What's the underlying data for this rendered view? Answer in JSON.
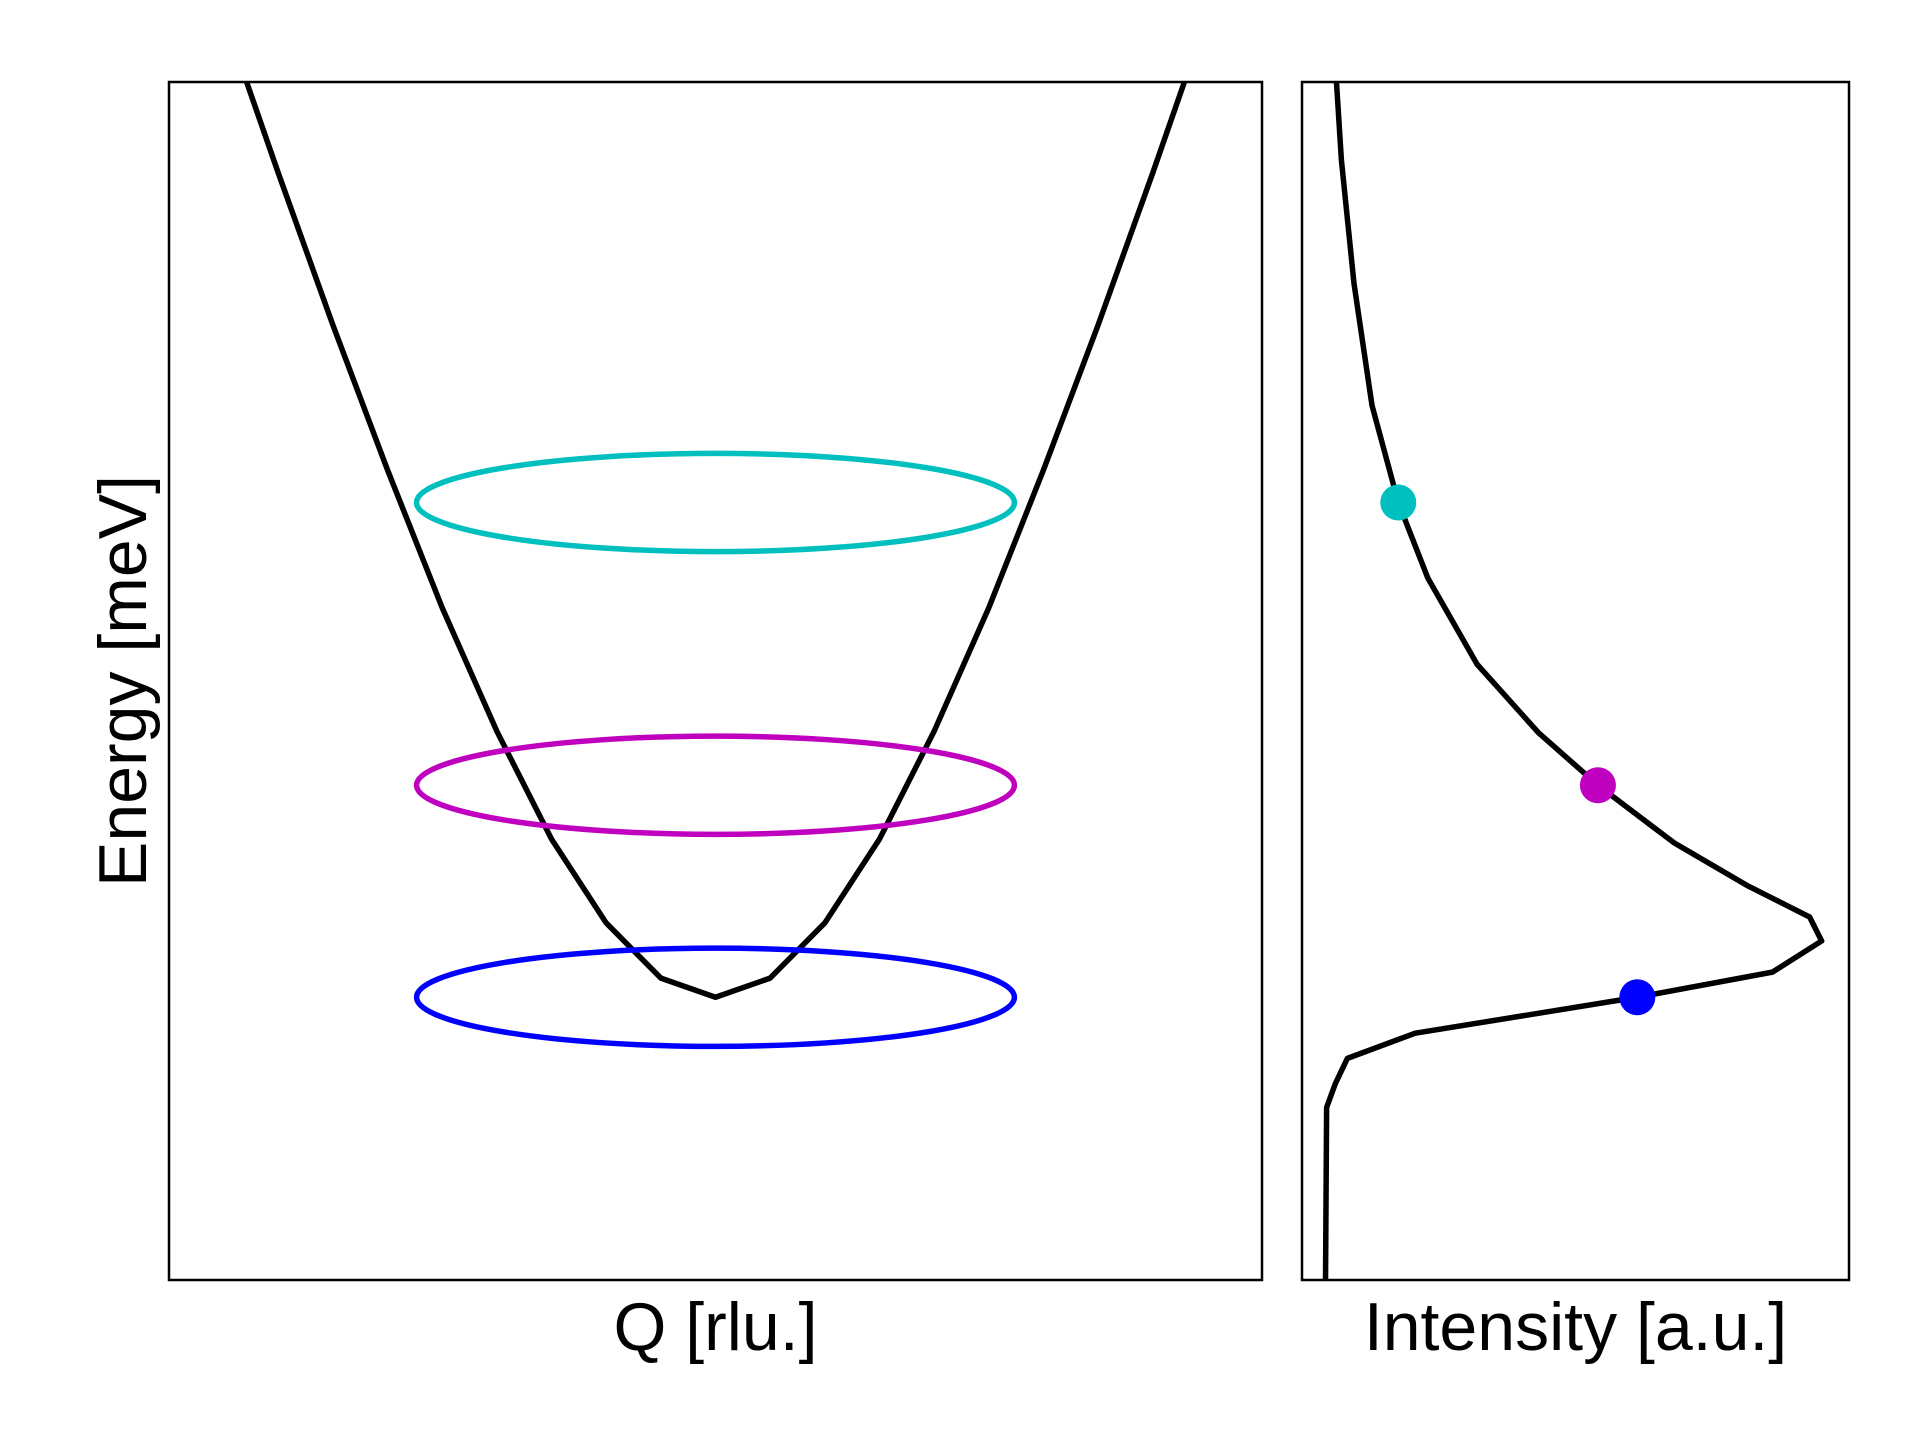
{
  "chart_data": [
    {
      "type": "line",
      "xlabel": "Q [rlu.]",
      "ylabel": "Energy [meV]",
      "xlim": [
        -1,
        1
      ],
      "ylim": [
        0,
        1
      ],
      "series": [
        {
          "color": "#000000",
          "x": [
            -0.858,
            -0.8,
            -0.7,
            -0.6,
            -0.5,
            -0.4,
            -0.3,
            -0.2,
            -0.1,
            0,
            0.1,
            0.2,
            0.3,
            0.4,
            0.5,
            0.6,
            0.7,
            0.8,
            0.858
          ],
          "values": [
            1.0,
            0.924,
            0.797,
            0.676,
            0.561,
            0.458,
            0.368,
            0.298,
            0.252,
            0.236,
            0.252,
            0.298,
            0.368,
            0.458,
            0.561,
            0.676,
            0.797,
            0.924,
            1.0
          ]
        }
      ],
      "ellipses": [
        {
          "color": "#00bfbf",
          "q": 0,
          "energy": 0.649,
          "q_halfwidth": 0.547,
          "e_halfheight": 0.041
        },
        {
          "color": "#bf00bf",
          "q": 0,
          "energy": 0.413,
          "q_halfwidth": 0.547,
          "e_halfheight": 0.041
        },
        {
          "color": "#0000ff",
          "q": 0,
          "energy": 0.236,
          "q_halfwidth": 0.547,
          "e_halfheight": 0.041
        }
      ]
    },
    {
      "type": "line",
      "xlabel": "Intensity [a.u.]",
      "xlim": [
        0,
        1
      ],
      "ylim": [
        0,
        1
      ],
      "series": [
        {
          "color": "#000000",
          "energy": [
            0,
            0.144,
            0.164,
            0.185,
            0.206,
            0.236,
            0.257,
            0.283,
            0.303,
            0.329,
            0.365,
            0.413,
            0.457,
            0.514,
            0.586,
            0.649,
            0.73,
            0.832,
            0.935,
            1.0
          ],
          "values": [
            0.043,
            0.045,
            0.061,
            0.083,
            0.207,
            0.613,
            0.86,
            0.95,
            0.928,
            0.815,
            0.68,
            0.541,
            0.432,
            0.32,
            0.23,
            0.176,
            0.128,
            0.095,
            0.072,
            0.063
          ]
        }
      ],
      "points": {
        "energy": [
          0.649,
          0.413,
          0.236
        ],
        "values": [
          0.176,
          0.541,
          0.613
        ],
        "colors": [
          "#00bfbf",
          "#bf00bf",
          "#0000ff"
        ]
      }
    }
  ]
}
